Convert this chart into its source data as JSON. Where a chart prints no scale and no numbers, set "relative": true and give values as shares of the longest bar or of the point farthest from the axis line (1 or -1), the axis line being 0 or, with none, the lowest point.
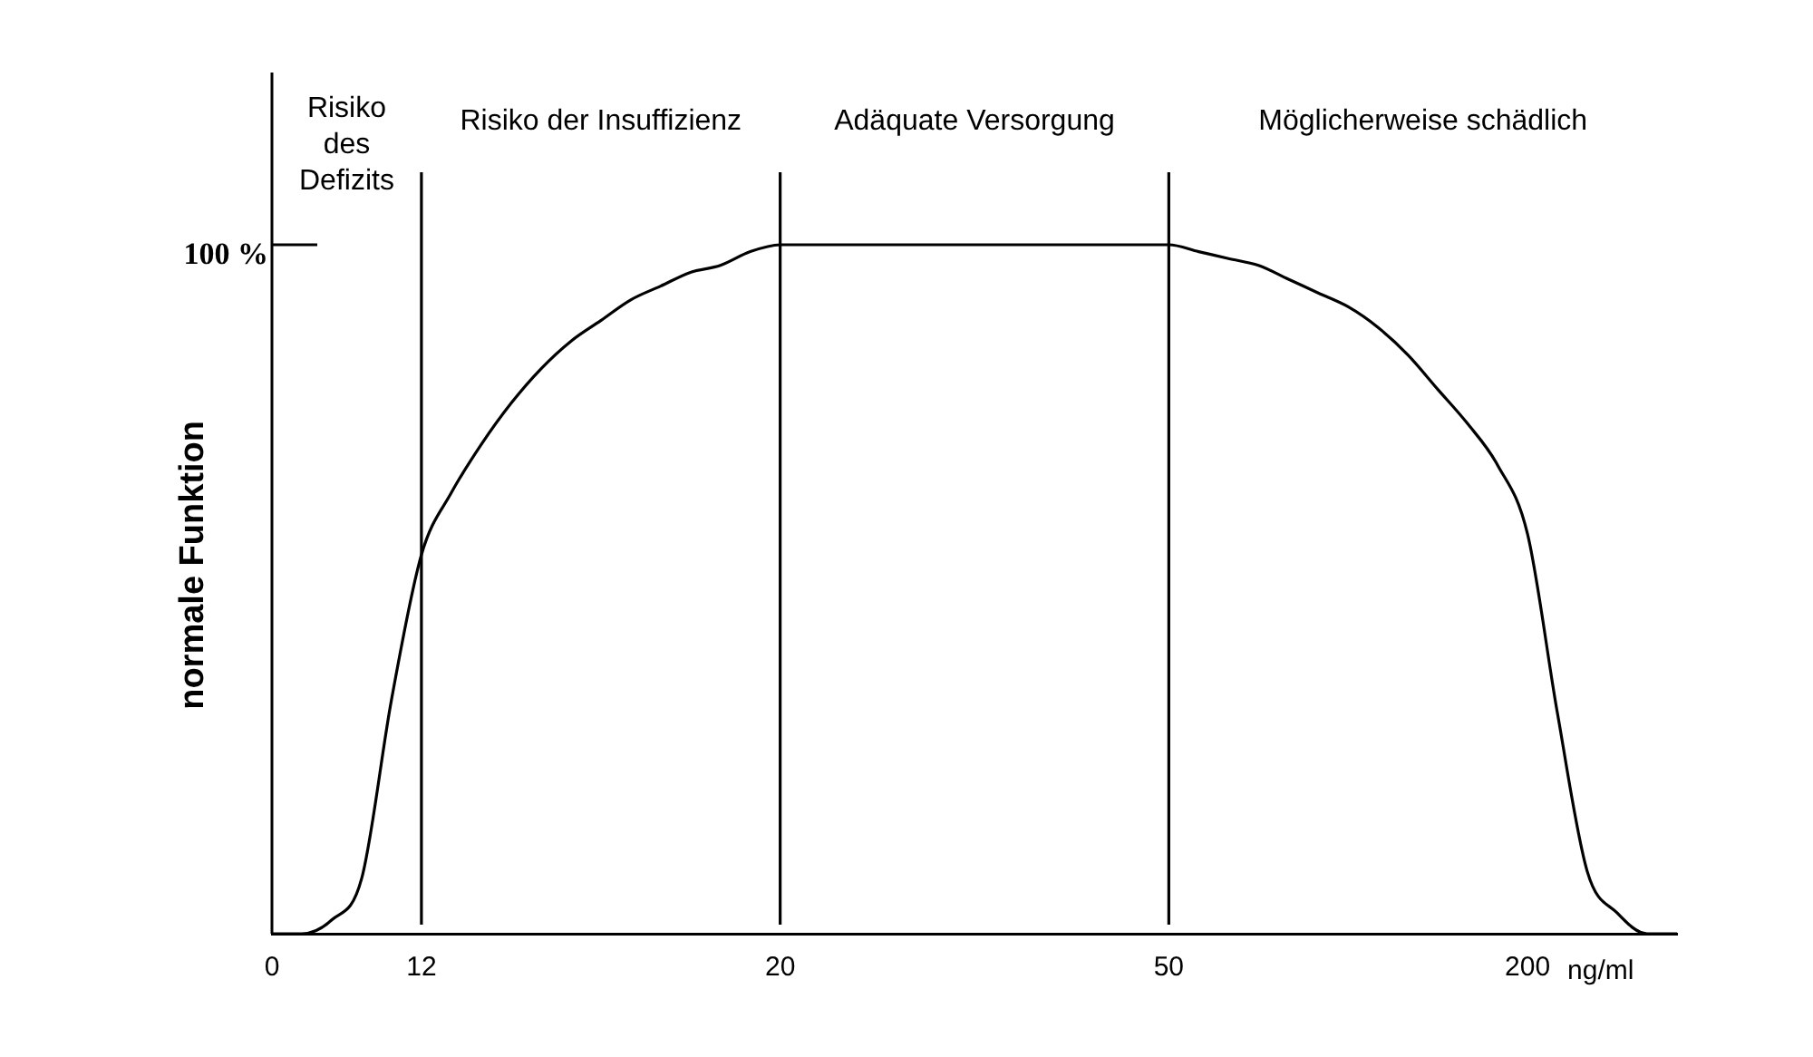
{
  "chart_data": {
    "type": "line",
    "ylabel": "normale Funktion",
    "xlabel": "ng/ml",
    "relative": true,
    "categories": [
      "0",
      null,
      null,
      null,
      null,
      "12",
      null,
      null,
      null,
      null,
      null,
      null,
      null,
      null,
      null,
      null,
      null,
      "20",
      null,
      null,
      null,
      null,
      null,
      null,
      null,
      null,
      null,
      null,
      null,
      null,
      "50",
      null,
      null,
      null,
      null,
      null,
      null,
      null,
      null,
      null,
      null,
      null,
      "200",
      null,
      null,
      null,
      null,
      null
    ],
    "series": [
      {
        "color": "#000000",
        "values": [
          0,
          0,
          0.02,
          0.08,
          0.34,
          0.55,
          0.64,
          0.71,
          0.77,
          0.82,
          0.86,
          0.89,
          0.92,
          0.94,
          0.96,
          0.97,
          0.99,
          1,
          1,
          1,
          1,
          1,
          1,
          1,
          1,
          1,
          1,
          1,
          1,
          1,
          1,
          0.99,
          0.98,
          0.97,
          0.95,
          0.93,
          0.91,
          0.88,
          0.84,
          0.79,
          0.74,
          0.68,
          0.58,
          0.32,
          0.09,
          0.03,
          0,
          0
        ]
      }
    ],
    "grid": false,
    "legend": false,
    "marker": "none",
    "line_style": "solid",
    "ref_lines": [
      {
        "axis": "x",
        "value": "12",
        "color": "#000000"
      },
      {
        "axis": "x",
        "value": "20",
        "color": "#000000"
      },
      {
        "axis": "x",
        "value": "50",
        "color": "#000000"
      }
    ],
    "annotations": [
      "Risiko\ndes\nDefizits",
      "Risiko der Insuffizienz",
      "Adäquate Versorgung",
      "Möglicherweise schädlich",
      "100 %"
    ]
  }
}
